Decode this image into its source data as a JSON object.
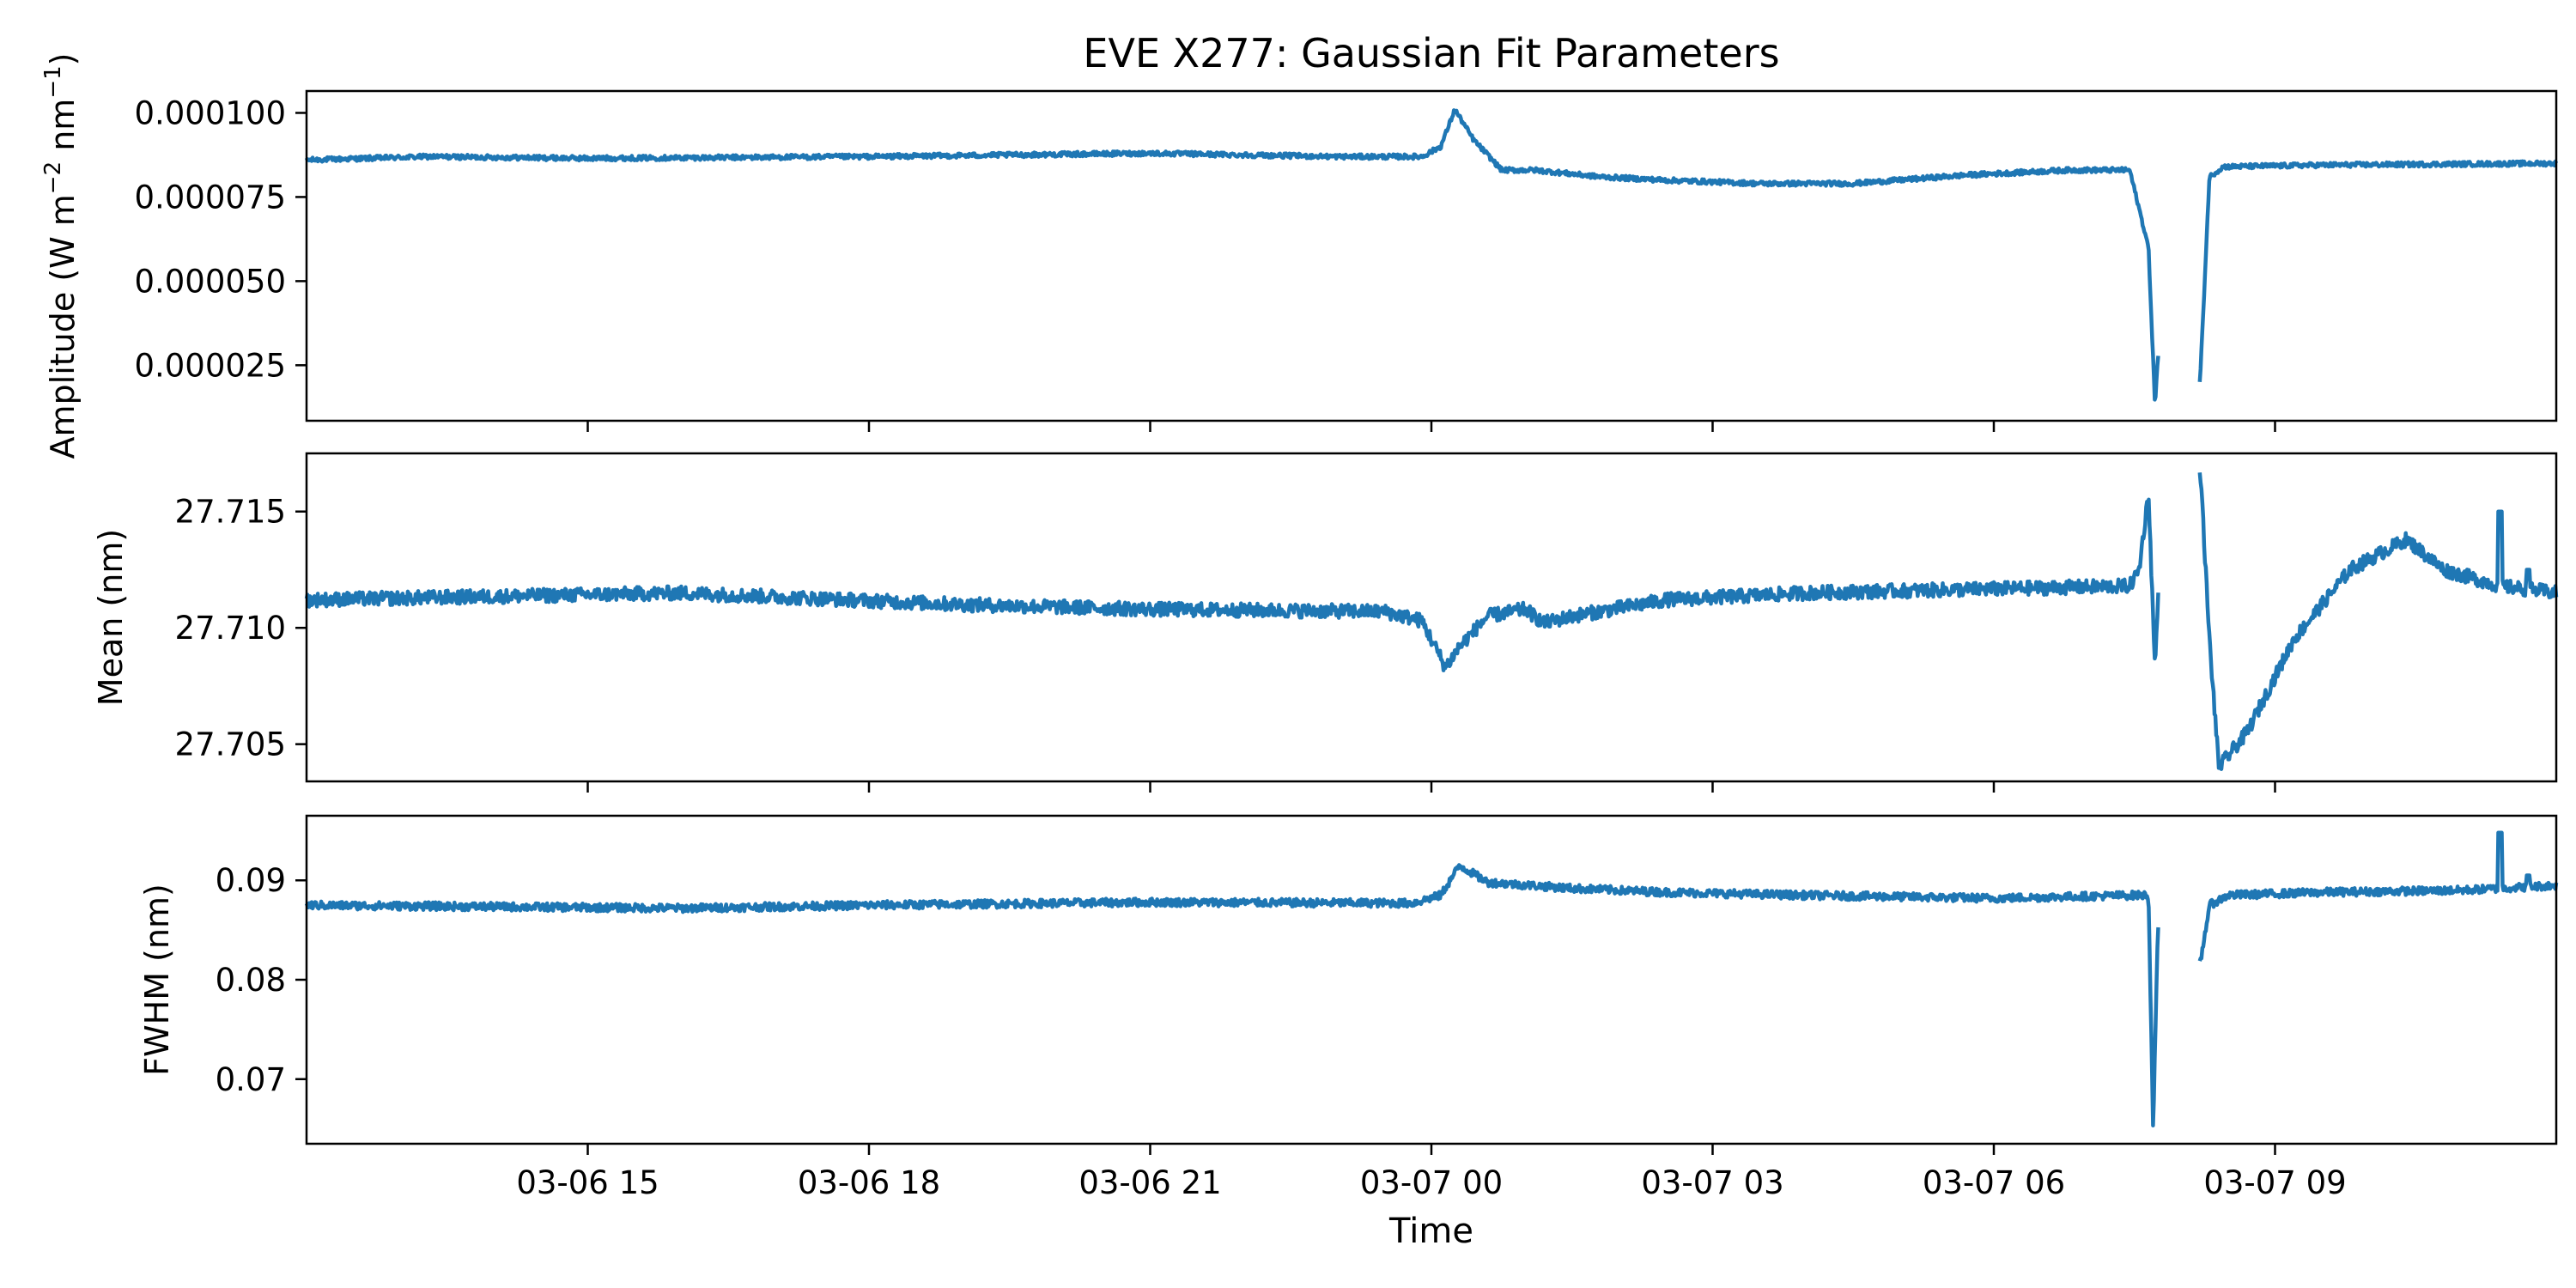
{
  "figure": {
    "title": "EVE X277: Gaussian Fit Parameters",
    "xlabel": "Time"
  },
  "chart_data": [
    {
      "type": "line",
      "panel": "amplitude",
      "ylabel_main": "Amplitude (W m",
      "ylabel_sup1": "−2",
      "ylabel_mid": " nm",
      "ylabel_sup2": "−1",
      "ylabel_end": ")",
      "xlim": [
        12.0,
        36.0
      ],
      "ylim": [
        8.5e-06,
        0.0001065
      ],
      "yticks": [
        2.5e-05,
        5e-05,
        7.5e-05,
        0.0001
      ],
      "ytick_labels": [
        "0.000025",
        "0.000050",
        "0.000075",
        "0.000100"
      ],
      "xticks": [
        15,
        18,
        21,
        24,
        27,
        30,
        33
      ],
      "xtick_labels": [
        "03-06 15",
        "03-06 18",
        "03-06 21",
        "03-07 00",
        "03-07 03",
        "03-07 06",
        "03-07 09"
      ],
      "series_color": "#1f77b4",
      "x_unit": "hours since 2012-03-06 00:00",
      "keypoints": [
        [
          12.0,
          8.6e-05
        ],
        [
          13.3,
          8.7e-05
        ],
        [
          15.0,
          8.65e-05
        ],
        [
          18.0,
          8.7e-05
        ],
        [
          21.0,
          8.8e-05
        ],
        [
          23.0,
          8.7e-05
        ],
        [
          23.9,
          8.7e-05
        ],
        [
          24.1,
          9e-05
        ],
        [
          24.25,
          0.000101
        ],
        [
          24.45,
          9.2e-05
        ],
        [
          24.75,
          8.3e-05
        ],
        [
          25.1,
          8.3e-05
        ],
        [
          25.8,
          8.1e-05
        ],
        [
          26.5,
          8e-05
        ],
        [
          27.5,
          7.9e-05
        ],
        [
          28.5,
          7.9e-05
        ],
        [
          29.7,
          8.15e-05
        ],
        [
          30.8,
          8.3e-05
        ],
        [
          31.45,
          8.3e-05
        ],
        [
          31.65,
          6e-05
        ],
        [
          31.72,
          1.3e-05
        ],
        [
          31.75,
          2.75e-05
        ],
        [
          32.2,
          2e-05
        ],
        [
          32.3,
          8.1e-05
        ],
        [
          32.45,
          8.4e-05
        ],
        [
          33.5,
          8.45e-05
        ],
        [
          36.0,
          8.5e-05
        ]
      ],
      "gap": [
        31.76,
        32.19
      ],
      "noise": 7e-07
    },
    {
      "type": "line",
      "panel": "mean",
      "ylabel": "Mean (nm)",
      "xlim": [
        12.0,
        36.0
      ],
      "ylim": [
        27.7034,
        27.7175
      ],
      "yticks": [
        27.705,
        27.71,
        27.715
      ],
      "ytick_labels": [
        "27.705",
        "27.710",
        "27.715"
      ],
      "xticks": [
        15,
        18,
        21,
        24,
        27,
        30,
        33
      ],
      "series_color": "#1f77b4",
      "keypoints": [
        [
          12.0,
          27.7112
        ],
        [
          16.0,
          27.7115
        ],
        [
          19.0,
          27.711
        ],
        [
          21.0,
          27.7108
        ],
        [
          23.5,
          27.7107
        ],
        [
          23.9,
          27.7103
        ],
        [
          24.15,
          27.7083
        ],
        [
          24.3,
          27.7092
        ],
        [
          24.6,
          27.7105
        ],
        [
          25.0,
          27.7108
        ],
        [
          25.2,
          27.7102
        ],
        [
          25.5,
          27.7105
        ],
        [
          26.5,
          27.7112
        ],
        [
          28.0,
          27.7115
        ],
        [
          31.45,
          27.7118
        ],
        [
          31.55,
          27.7125
        ],
        [
          31.65,
          27.7158
        ],
        [
          31.72,
          27.7082
        ],
        [
          31.75,
          27.7112
        ],
        [
          32.2,
          27.717
        ],
        [
          32.3,
          27.7095
        ],
        [
          32.4,
          27.704
        ],
        [
          32.7,
          27.7055
        ],
        [
          33.2,
          27.7095
        ],
        [
          33.8,
          27.7125
        ],
        [
          34.4,
          27.7138
        ],
        [
          34.8,
          27.7125
        ],
        [
          35.4,
          27.7118
        ],
        [
          36.0,
          27.7115
        ]
      ],
      "spikes": [
        [
          35.4,
          27.715
        ],
        [
          35.7,
          27.7125
        ]
      ],
      "gap": [
        31.76,
        32.19
      ],
      "noise": 0.0003
    },
    {
      "type": "line",
      "panel": "fwhm",
      "ylabel": "FWHM (nm)",
      "xlim": [
        12.0,
        36.0
      ],
      "ylim": [
        0.0635,
        0.0965
      ],
      "yticks": [
        0.07,
        0.08,
        0.09
      ],
      "ytick_labels": [
        "0.07",
        "0.08",
        "0.09"
      ],
      "xticks": [
        15,
        18,
        21,
        24,
        27,
        30,
        33
      ],
      "series_color": "#1f77b4",
      "keypoints": [
        [
          12.0,
          0.0875
        ],
        [
          16.0,
          0.0872
        ],
        [
          18.0,
          0.0875
        ],
        [
          21.0,
          0.0878
        ],
        [
          23.8,
          0.0877
        ],
        [
          24.1,
          0.0885
        ],
        [
          24.3,
          0.0915
        ],
        [
          24.6,
          0.0898
        ],
        [
          25.5,
          0.0892
        ],
        [
          26.5,
          0.0888
        ],
        [
          28.0,
          0.0885
        ],
        [
          30.0,
          0.0882
        ],
        [
          31.5,
          0.0885
        ],
        [
          31.65,
          0.0885
        ],
        [
          31.7,
          0.065
        ],
        [
          31.75,
          0.085
        ],
        [
          32.2,
          0.0815
        ],
        [
          32.3,
          0.0875
        ],
        [
          32.5,
          0.0885
        ],
        [
          33.5,
          0.0888
        ],
        [
          35.0,
          0.089
        ],
        [
          36.0,
          0.0895
        ]
      ],
      "spikes": [
        [
          35.4,
          0.0948
        ],
        [
          35.7,
          0.0905
        ]
      ],
      "gap": [
        31.76,
        32.19
      ],
      "noise": 0.0004
    }
  ]
}
